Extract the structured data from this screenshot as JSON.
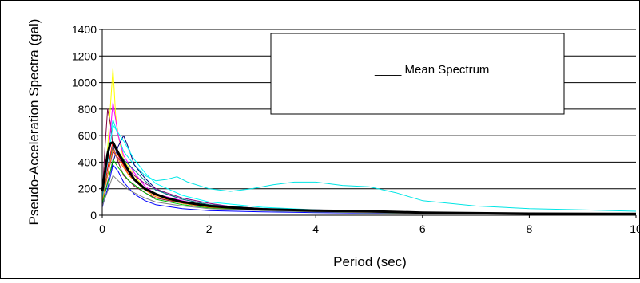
{
  "chart_data": {
    "type": "line",
    "title": "",
    "xlabel": "Period (sec)",
    "ylabel": "Pseudo-Acceleration Spectra (gal)",
    "xlim": [
      0,
      10
    ],
    "ylim": [
      0,
      1400
    ],
    "x_ticks": [
      "0",
      "2",
      "4",
      "6",
      "8",
      "10"
    ],
    "y_ticks": [
      "0",
      "200",
      "400",
      "600",
      "800",
      "1000",
      "1200",
      "1400"
    ],
    "grid": "horizontal",
    "legend": {
      "position": "top-right",
      "entries": [
        "____ Mean Spectrum"
      ]
    },
    "series": [
      {
        "name": "Mean Spectrum",
        "color": "#000000",
        "bold": true,
        "x": [
          0,
          0.05,
          0.1,
          0.15,
          0.2,
          0.3,
          0.4,
          0.5,
          0.6,
          0.8,
          1.0,
          1.2,
          1.5,
          2.0,
          2.5,
          3.0,
          4.0,
          5.0,
          6.0,
          8.0,
          10.0
        ],
        "y": [
          180,
          320,
          460,
          540,
          550,
          470,
          400,
          330,
          270,
          200,
          160,
          130,
          100,
          70,
          55,
          45,
          35,
          30,
          20,
          12,
          10
        ]
      },
      {
        "color": "#00e5e5",
        "x": [
          0,
          0.1,
          0.2,
          0.3,
          0.4,
          0.6,
          0.8,
          1.0,
          1.2,
          1.4,
          1.6,
          2.0,
          2.4,
          2.8,
          3.2,
          3.6,
          4.0,
          4.5,
          5.0,
          5.5,
          6.0,
          7.0,
          8.0,
          9.0,
          10.0
        ],
        "y": [
          200,
          500,
          720,
          600,
          480,
          380,
          300,
          260,
          270,
          290,
          250,
          200,
          180,
          200,
          230,
          250,
          250,
          225,
          215,
          170,
          110,
          70,
          50,
          40,
          30
        ]
      },
      {
        "color": "#ffff00",
        "x": [
          0,
          0.1,
          0.2,
          0.25,
          0.3,
          0.4,
          0.6,
          0.8,
          1.0,
          1.5,
          2.0,
          3.0,
          4.0,
          6.0,
          10.0
        ],
        "y": [
          120,
          500,
          1110,
          760,
          600,
          420,
          300,
          200,
          150,
          90,
          60,
          40,
          30,
          15,
          8
        ]
      },
      {
        "color": "#800040",
        "x": [
          0,
          0.05,
          0.1,
          0.15,
          0.2,
          0.3,
          0.4,
          0.6,
          0.8,
          1.0,
          1.5,
          2.0,
          3.0,
          4.0,
          6.0,
          10.0
        ],
        "y": [
          150,
          500,
          800,
          700,
          520,
          400,
          300,
          220,
          170,
          130,
          90,
          60,
          40,
          30,
          15,
          8
        ]
      },
      {
        "color": "#ff00ff",
        "x": [
          0,
          0.1,
          0.2,
          0.3,
          0.4,
          0.6,
          0.8,
          1.0,
          1.5,
          2.0,
          3.0,
          4.0,
          6.0,
          10.0
        ],
        "y": [
          100,
          400,
          850,
          600,
          450,
          320,
          220,
          160,
          110,
          70,
          50,
          35,
          20,
          10
        ]
      },
      {
        "color": "#000080",
        "x": [
          0,
          0.1,
          0.2,
          0.3,
          0.4,
          0.5,
          0.6,
          0.8,
          1.0,
          1.2,
          1.5,
          2.0,
          3.0,
          4.0,
          6.0,
          10.0
        ],
        "y": [
          80,
          250,
          400,
          520,
          600,
          500,
          380,
          280,
          200,
          160,
          120,
          80,
          50,
          35,
          20,
          10
        ]
      },
      {
        "color": "#0000ff",
        "x": [
          0,
          0.1,
          0.2,
          0.3,
          0.4,
          0.6,
          0.8,
          1.0,
          1.5,
          2.0,
          3.0,
          4.0,
          6.0,
          10.0
        ],
        "y": [
          60,
          200,
          380,
          330,
          250,
          160,
          110,
          80,
          50,
          35,
          25,
          20,
          12,
          6
        ]
      },
      {
        "color": "#008080",
        "x": [
          0,
          0.1,
          0.2,
          0.3,
          0.4,
          0.6,
          0.8,
          1.0,
          1.5,
          2.0,
          3.0,
          4.0,
          6.0,
          10.0
        ],
        "y": [
          100,
          350,
          520,
          480,
          420,
          340,
          260,
          190,
          120,
          80,
          50,
          35,
          20,
          10
        ]
      },
      {
        "color": "#800080",
        "x": [
          0,
          0.1,
          0.2,
          0.4,
          0.6,
          0.8,
          1.0,
          1.2,
          1.5,
          2.0,
          2.5,
          3.0,
          4.0,
          5.0,
          6.0,
          10.0
        ],
        "y": [
          120,
          300,
          480,
          380,
          300,
          240,
          200,
          170,
          130,
          90,
          60,
          50,
          40,
          30,
          20,
          10
        ]
      },
      {
        "color": "#ff0000",
        "x": [
          0,
          0.1,
          0.2,
          0.3,
          0.5,
          0.8,
          1.0,
          1.5,
          2.0,
          3.0,
          4.0,
          6.0,
          10.0
        ],
        "y": [
          140,
          350,
          560,
          450,
          300,
          200,
          150,
          100,
          70,
          45,
          30,
          15,
          8
        ]
      },
      {
        "color": "#00c000",
        "x": [
          0,
          0.1,
          0.2,
          0.3,
          0.5,
          0.8,
          1.0,
          1.5,
          2.0,
          3.0,
          4.0,
          6.0,
          10.0
        ],
        "y": [
          90,
          240,
          420,
          360,
          260,
          170,
          120,
          80,
          55,
          35,
          25,
          12,
          6
        ]
      },
      {
        "color": "#ff8000",
        "x": [
          0,
          0.1,
          0.2,
          0.3,
          0.5,
          0.8,
          1.0,
          1.5,
          2.0,
          3.0,
          4.0,
          6.0,
          10.0
        ],
        "y": [
          110,
          300,
          500,
          420,
          300,
          190,
          140,
          90,
          60,
          40,
          28,
          15,
          8
        ]
      },
      {
        "color": "#808080",
        "x": [
          0,
          0.1,
          0.2,
          0.3,
          0.5,
          0.8,
          1.0,
          1.5,
          2.0,
          3.0,
          4.0,
          6.0,
          10.0
        ],
        "y": [
          70,
          180,
          300,
          260,
          190,
          130,
          100,
          70,
          50,
          35,
          25,
          12,
          6
        ]
      },
      {
        "color": "#00ffff",
        "x": [
          0,
          0.1,
          0.2,
          0.3,
          0.4,
          0.6,
          0.8,
          1.0,
          1.5,
          2.0,
          3.0,
          4.0,
          6.0,
          10.0
        ],
        "y": [
          130,
          400,
          680,
          620,
          560,
          420,
          320,
          240,
          150,
          100,
          60,
          40,
          20,
          10
        ]
      }
    ]
  }
}
